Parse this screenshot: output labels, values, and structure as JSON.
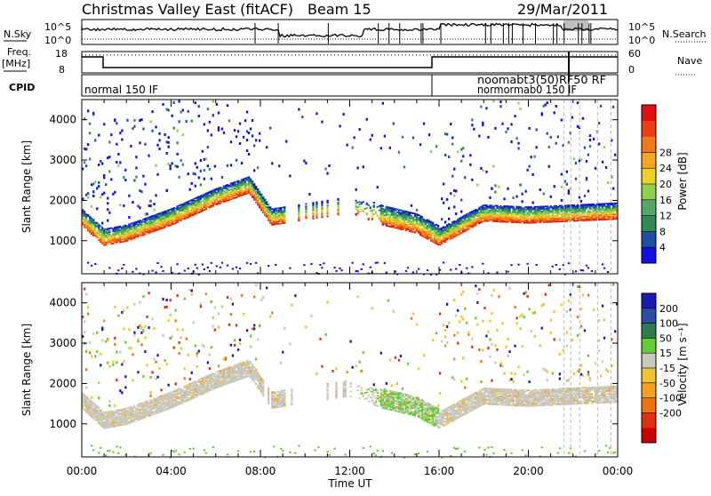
{
  "header": {
    "title": "Christmas Valley East (fitACF)",
    "beam": "Beam 15",
    "date": "29/Mar/2011"
  },
  "top_panels": {
    "nsky_label": "N.Sky",
    "nsky_ticks": [
      "10^5",
      "10^0"
    ],
    "nsearch_label": "N.Search",
    "nsearch_ticks": [
      "10^5",
      "10^0"
    ],
    "freq_label_1": "Freq.",
    "freq_label_2": "[MHz]",
    "freq_ticks": [
      "18",
      "8"
    ],
    "nave_label": "Nave",
    "nave_ticks": [
      "60",
      "0"
    ],
    "cpid_label": "CPID",
    "cpid_segments": [
      "normal 150 IF",
      "noomabt3(50)RF50 RF",
      "normormab0 150 IF"
    ]
  },
  "colors": {
    "power_scale": [
      "#1010e0",
      "#1e4fa6",
      "#2e8b57",
      "#55a868",
      "#8fd14f",
      "#f0d020",
      "#f5a623",
      "#f07a1a",
      "#e84010",
      "#e01010"
    ],
    "velocity_scale": [
      "#1a1ab0",
      "#2a4ea8",
      "#2e7d4f",
      "#66cc33",
      "#c8c8c0",
      "#f2c230",
      "#f5a020",
      "#f07010",
      "#e03010",
      "#cc0000"
    ]
  },
  "chart_data": [
    {
      "type": "heatmap",
      "name": "power",
      "title": "",
      "xlabel": "",
      "ylabel": "Slant Range [km]",
      "xlim": [
        0,
        24
      ],
      "ylim": [
        180,
        4500
      ],
      "x_ticks": [
        "00:00",
        "04:00",
        "08:00",
        "12:00",
        "16:00",
        "20:00",
        "00:00"
      ],
      "y_ticks": [
        "1000",
        "2000",
        "3000",
        "4000"
      ],
      "colorbar_label": "Power [dB]",
      "colorbar_ticks": [
        "4",
        "8",
        "12",
        "16",
        "20",
        "24",
        "28"
      ],
      "main_band": {
        "x": [
          0.0,
          1.0,
          2.0,
          4.0,
          6.0,
          7.5,
          8.5,
          12.0,
          13.5,
          15.0,
          16.0,
          18.0,
          20.0,
          22.0,
          24.0
        ],
        "range_km": [
          1500,
          1000,
          1100,
          1500,
          2000,
          2300,
          1500,
          1800,
          1500,
          1300,
          1000,
          1600,
          1550,
          1600,
          1650
        ]
      }
    },
    {
      "type": "heatmap",
      "name": "velocity",
      "title": "",
      "xlabel": "Time UT",
      "ylabel": "Slant Range [km]",
      "xlim": [
        0,
        24
      ],
      "ylim": [
        180,
        4500
      ],
      "x_ticks": [
        "00:00",
        "04:00",
        "08:00",
        "12:00",
        "16:00",
        "20:00",
        "00:00"
      ],
      "y_ticks": [
        "1000",
        "2000",
        "3000",
        "4000"
      ],
      "colorbar_label": "Velocity [m s⁻¹]",
      "colorbar_ticks": [
        "200",
        "100",
        "50",
        "15",
        "-15",
        "-50",
        "-100",
        "-200"
      ],
      "main_band": {
        "x": [
          0.0,
          1.0,
          2.0,
          4.0,
          6.0,
          7.5,
          8.5,
          12.0,
          13.5,
          15.0,
          16.0,
          18.0,
          20.0,
          22.0,
          24.0
        ],
        "range_km": [
          1500,
          1000,
          1100,
          1500,
          2000,
          2300,
          1500,
          1800,
          1500,
          1300,
          1000,
          1600,
          1550,
          1600,
          1650
        ]
      }
    }
  ]
}
